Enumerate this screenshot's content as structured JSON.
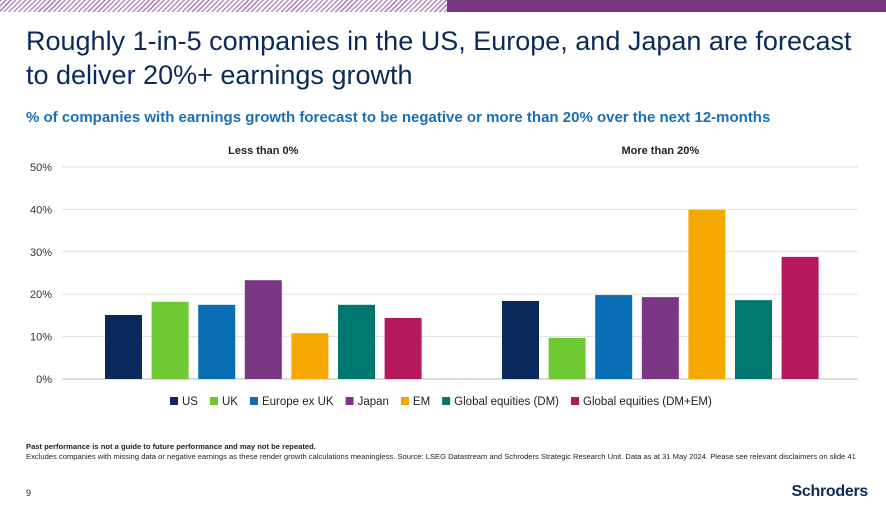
{
  "title": "Roughly 1-in-5 companies in the US, Europe, and Japan are forecast to deliver 20%+ earnings growth",
  "subtitle": "% of companies with earnings growth forecast to be negative or more than 20% over the next 12-months",
  "chart_data": {
    "type": "bar",
    "categories": [
      "Less than 0%",
      "More than 20%"
    ],
    "series": [
      {
        "name": "US",
        "color": "#0b2a5b",
        "values": [
          15.1,
          18.4
        ]
      },
      {
        "name": "UK",
        "color": "#6dc831",
        "values": [
          18.2,
          9.7
        ]
      },
      {
        "name": "Europe ex UK",
        "color": "#0a6eb4",
        "values": [
          17.5,
          19.8
        ]
      },
      {
        "name": "Japan",
        "color": "#7b3785",
        "values": [
          23.3,
          19.3
        ]
      },
      {
        "name": "EM",
        "color": "#f5a800",
        "values": [
          10.8,
          39.9
        ]
      },
      {
        "name": "Global equities (DM)",
        "color": "#00776e",
        "values": [
          17.5,
          18.6
        ]
      },
      {
        "name": "Global equities (DM+EM)",
        "color": "#b5195d",
        "values": [
          14.4,
          28.8
        ]
      }
    ],
    "ylim": [
      0,
      50
    ],
    "yticks": [
      "0%",
      "10%",
      "20%",
      "30%",
      "40%",
      "50%"
    ],
    "grid": true,
    "legend": "bottom"
  },
  "footer": {
    "disclaimer": "Past performance is not a guide to future performance and may not be repeated.",
    "note": "Excludes companies with missing data or negative earnings as these render growth calculations meaningless. Source: LSEG Datastream and Schroders Strategic Research Unit. Data as at 31 May 2024. Please see relevant disclaimers on slide 41",
    "page": "9",
    "logo": "Schroders"
  }
}
